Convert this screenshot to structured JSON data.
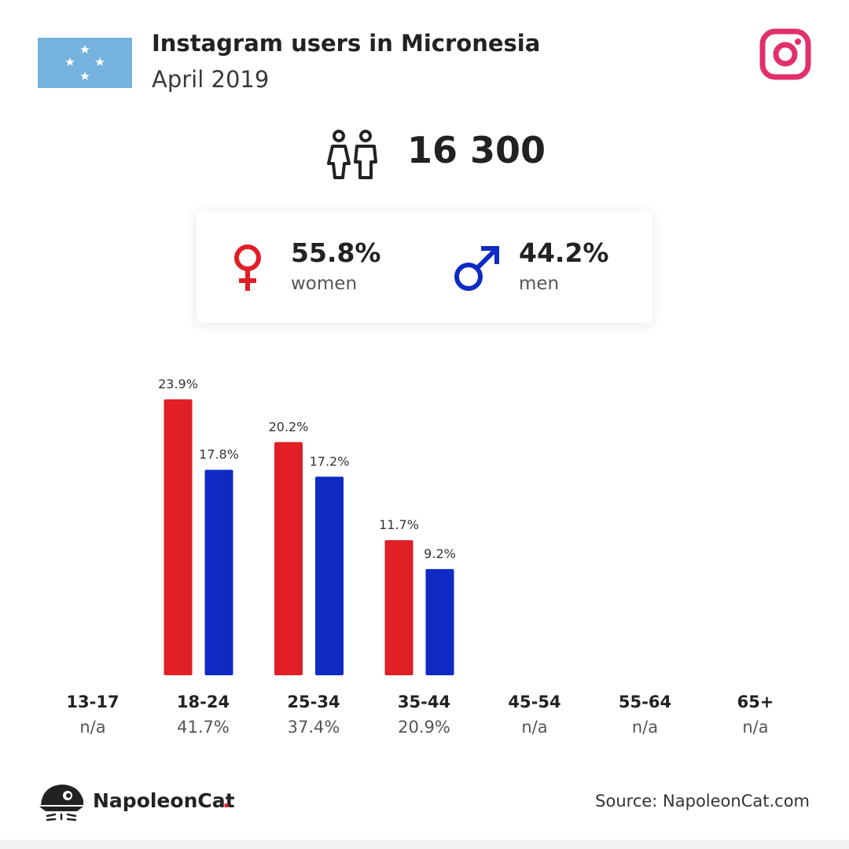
{
  "header": {
    "title": "Instagram users in Micronesia",
    "subtitle": "April 2019"
  },
  "total_users": "16 300",
  "gender": {
    "women_pct": "55.8%",
    "women_label": "women",
    "men_pct": "44.2%",
    "men_label": "men"
  },
  "footer": {
    "brand": "NapoleonCat",
    "brand_dot": ".",
    "source": "Source: NapoleonCat.com"
  },
  "colors": {
    "women": "#e01f26",
    "men": "#0f2bc3",
    "instagram": "#e1306c",
    "flag": "#75b2dd"
  },
  "icons": [
    "micronesia-flag",
    "instagram-logo",
    "users-icon",
    "female-symbol-icon",
    "male-symbol-icon",
    "napoleoncat-logo"
  ],
  "chart_data": {
    "type": "bar",
    "categories": [
      "13-17",
      "18-24",
      "25-34",
      "35-44",
      "45-54",
      "55-64",
      "65+"
    ],
    "totals": [
      "n/a",
      "41.7%",
      "37.4%",
      "20.9%",
      "n/a",
      "n/a",
      "n/a"
    ],
    "series": [
      {
        "values": [
          null,
          23.9,
          20.2,
          11.7,
          null,
          null,
          null
        ],
        "labels": [
          "",
          "23.9%",
          "20.2%",
          "11.7%",
          "",
          "",
          ""
        ]
      },
      {
        "values": [
          null,
          17.8,
          17.2,
          9.2,
          null,
          null,
          null
        ],
        "labels": [
          "",
          "17.8%",
          "17.2%",
          "9.2%",
          "",
          "",
          ""
        ]
      }
    ],
    "ylim": [
      0,
      23.9
    ],
    "grid": false
  }
}
